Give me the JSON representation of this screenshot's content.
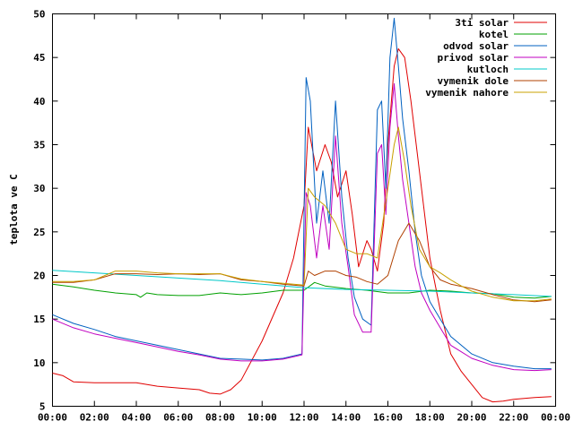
{
  "chart_data": {
    "type": "line",
    "ylabel": "teplota ve C",
    "ylim": [
      5,
      50
    ],
    "y_ticks": [
      5,
      10,
      15,
      20,
      25,
      30,
      35,
      40,
      45,
      50
    ],
    "xlim": [
      0,
      24
    ],
    "x_ticks": [
      "00:00",
      "02:00",
      "04:00",
      "06:00",
      "08:00",
      "10:00",
      "12:00",
      "14:00",
      "16:00",
      "18:00",
      "20:00",
      "22:00",
      "00:00"
    ],
    "grid": false,
    "legend_position": "top-right",
    "series": [
      {
        "name": "3ti solar",
        "color": "#e00000",
        "x": [
          0,
          0.5,
          1,
          2,
          3,
          4,
          5,
          6,
          7,
          7.5,
          8,
          8.5,
          9,
          10,
          11,
          11.5,
          12,
          12.2,
          12.6,
          13,
          13.3,
          13.6,
          14,
          14.3,
          14.6,
          15,
          15.2,
          15.5,
          15.8,
          16,
          16.3,
          16.5,
          16.8,
          17.1,
          17.5,
          18,
          18.5,
          19,
          19.5,
          20,
          20.5,
          21,
          21.5,
          22,
          23,
          23.8
        ],
        "y": [
          8.8,
          8.5,
          7.8,
          7.7,
          7.7,
          7.7,
          7.3,
          7.1,
          6.9,
          6.5,
          6.4,
          6.9,
          8,
          12.5,
          18,
          22,
          28,
          37,
          32,
          35,
          33,
          29,
          32,
          27,
          21,
          24,
          23,
          20.5,
          26,
          35,
          44,
          46,
          45,
          40,
          32,
          22,
          16,
          11,
          9,
          7.5,
          6,
          5.5,
          5.6,
          5.8,
          6,
          6.1
        ]
      },
      {
        "name": "kotel",
        "color": "#00a000",
        "x": [
          0,
          1,
          2,
          3,
          4,
          4.2,
          4.5,
          5,
          6,
          7,
          8,
          9,
          10,
          11,
          12,
          12.5,
          13,
          14,
          15,
          16,
          17,
          18,
          19,
          20,
          21,
          22,
          23,
          23.8
        ],
        "y": [
          19,
          18.7,
          18.3,
          18,
          17.8,
          17.5,
          18,
          17.8,
          17.7,
          17.7,
          18,
          17.8,
          18,
          18.3,
          18.3,
          19.2,
          18.8,
          18.5,
          18.3,
          18,
          18,
          18.3,
          18.2,
          18,
          17.9,
          17.5,
          17.4,
          17.6
        ]
      },
      {
        "name": "odvod solar",
        "color": "#0060c0",
        "x": [
          0,
          1,
          2,
          3,
          4,
          5,
          6,
          7,
          8,
          9,
          10,
          11,
          11.9,
          12.1,
          12.3,
          12.6,
          12.9,
          13.2,
          13.5,
          13.8,
          14.1,
          14.4,
          14.8,
          15.2,
          15.5,
          15.7,
          15.9,
          16.1,
          16.3,
          16.5,
          16.7,
          17,
          17.3,
          17.6,
          18,
          18.5,
          19,
          20,
          21,
          22,
          23,
          23.8
        ],
        "y": [
          15.5,
          14.5,
          13.8,
          13,
          12.5,
          12,
          11.5,
          11,
          10.5,
          10.4,
          10.3,
          10.5,
          11,
          42.7,
          40,
          26,
          32,
          26,
          40,
          29,
          22,
          17.5,
          15,
          14.3,
          39,
          40,
          30,
          45,
          49.5,
          44,
          38,
          32,
          25,
          20,
          17,
          15,
          13,
          11,
          10,
          9.6,
          9.3,
          9.3
        ]
      },
      {
        "name": "privod solar",
        "color": "#c000c0",
        "x": [
          0,
          1,
          2,
          3,
          4,
          5,
          6,
          7,
          8,
          9,
          10,
          11,
          11.9,
          12.1,
          12.3,
          12.6,
          12.9,
          13.2,
          13.5,
          13.8,
          14.1,
          14.4,
          14.8,
          15.2,
          15.5,
          15.7,
          15.9,
          16.1,
          16.3,
          16.5,
          16.7,
          17,
          17.3,
          17.6,
          18,
          18.5,
          19,
          20,
          21,
          22,
          23,
          23.8
        ],
        "y": [
          15,
          14,
          13.3,
          12.8,
          12.3,
          11.8,
          11.3,
          10.9,
          10.4,
          10.2,
          10.2,
          10.4,
          10.9,
          29.5,
          28,
          22,
          28,
          23,
          36,
          26,
          21,
          15.5,
          13.5,
          13.5,
          34,
          35,
          27,
          37,
          42,
          36,
          31,
          26,
          21,
          18,
          16,
          14,
          12,
          10.5,
          9.7,
          9.2,
          9.1,
          9.2
        ]
      },
      {
        "name": "kutloch",
        "color": "#00c8c8",
        "x": [
          0,
          2,
          4,
          6,
          8,
          10,
          12,
          14,
          16,
          18,
          20,
          22,
          23.8
        ],
        "y": [
          20.6,
          20.3,
          20,
          19.7,
          19.4,
          19,
          18.6,
          18.4,
          18.3,
          18.2,
          18,
          17.8,
          17.6
        ]
      },
      {
        "name": "vymenik dole",
        "color": "#b04000",
        "x": [
          0,
          1,
          2,
          3,
          4,
          5,
          6,
          7,
          8,
          9,
          10,
          11,
          12,
          12.2,
          12.5,
          13,
          13.5,
          14,
          14.5,
          15,
          15.5,
          16,
          16.5,
          17,
          17.5,
          18,
          18.5,
          19,
          20,
          21,
          22,
          23,
          23.8
        ],
        "y": [
          19.2,
          19.2,
          19.5,
          20.2,
          20.2,
          20.1,
          20.2,
          20.1,
          20.2,
          19.5,
          19.3,
          19,
          18.8,
          20.5,
          20,
          20.5,
          20.5,
          20,
          19.8,
          19.3,
          19,
          20,
          24,
          26,
          24,
          21,
          19.5,
          19,
          18.5,
          17.8,
          17.2,
          17,
          17.2
        ]
      },
      {
        "name": "vymenik nahore",
        "color": "#c8a000",
        "x": [
          0,
          1,
          2,
          3,
          4,
          5,
          6,
          7,
          8,
          9,
          10,
          11,
          12,
          12.2,
          12.5,
          13,
          13.5,
          14,
          14.5,
          15,
          15.5,
          16,
          16.3,
          16.5,
          16.8,
          17.1,
          17.5,
          18,
          18.5,
          19,
          19.5,
          20,
          21,
          22,
          23,
          23.8
        ],
        "y": [
          19.3,
          19.3,
          19.5,
          20.5,
          20.5,
          20.3,
          20.2,
          20.2,
          20.2,
          19.6,
          19.3,
          19.1,
          18.9,
          30,
          29,
          28,
          26,
          23,
          22.5,
          22.5,
          22,
          30,
          35,
          37,
          33,
          28,
          23,
          21,
          20.3,
          19.5,
          18.8,
          18.2,
          17.5,
          17.1,
          17.1,
          17.3
        ]
      }
    ]
  }
}
